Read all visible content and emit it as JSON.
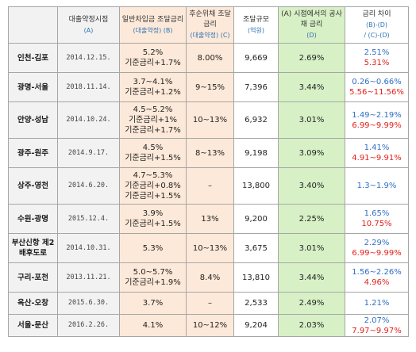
{
  "headers": {
    "route": "",
    "date": "대출약정시점",
    "date_sub": "(A)",
    "rate": "일반차입금 조달금리",
    "rate_sub": "(대출약정) (B)",
    "sub": "후순위채 조달금리",
    "sub_sub": "(대출약정) (C)",
    "scale": "조달규모",
    "scale_sub": "(억원)",
    "pub": "(A) 시점에서의 공사채 금리",
    "pub_sub": "(D)",
    "gap": "금리 차이",
    "gap_sub1": "(B)-(D)",
    "gap_sub2": "/ (C)-(D)"
  },
  "rows": [
    {
      "route": "인천-김포",
      "date": "2014.12.15.",
      "rate": [
        "5.2%",
        "기준금리+1.7%"
      ],
      "sub": "8.00%",
      "scale": "9,669",
      "pub": "2.69%",
      "gap_blue": "2.51%",
      "gap_red": "5.31%"
    },
    {
      "route": "광명-서울",
      "date": "2018.11.14.",
      "rate": [
        "3.7~4.1%",
        "기준금리+1.2%"
      ],
      "sub": "9~15%",
      "scale": "7,396",
      "pub": "3.44%",
      "gap_blue": "0.26~0.66%",
      "gap_red": "5.56~11.56%"
    },
    {
      "route": "안양-성남",
      "date": "2014.10.24.",
      "rate": [
        "4.5~5.2%",
        "기준금리+1%",
        "기준금리+1.7%"
      ],
      "sub": "10~13%",
      "scale": "6,932",
      "pub": "3.01%",
      "gap_blue": "1.49~2.19%",
      "gap_red": "6.99~9.99%"
    },
    {
      "route": "광주-원주",
      "date": "2014.9.17.",
      "rate": [
        "4.5%",
        "기준금리+1.5%"
      ],
      "sub": "8~13%",
      "scale": "9,198",
      "pub": "3.09%",
      "gap_blue": "1.41%",
      "gap_red": "4.91~9.91%"
    },
    {
      "route": "상주-영천",
      "date": "2014.6.20.",
      "rate": [
        "4.7~5.3%",
        "기준금리+0.8%",
        "기준금리+1.5%"
      ],
      "sub": "–",
      "scale": "13,800",
      "pub": "3.40%",
      "gap_blue": "1.3~1.9%",
      "gap_red": ""
    },
    {
      "route": "수원-광명",
      "date": "2015.12.4.",
      "rate": [
        "3.9%",
        "기준금리+1.5%"
      ],
      "sub": "13%",
      "scale": "9,200",
      "pub": "2.25%",
      "gap_blue": "1.65%",
      "gap_red": "10.75%"
    },
    {
      "route": "부산신항 제2배후도로",
      "date": "2014.10.31.",
      "rate": [
        "5.3%"
      ],
      "sub": "10~13%",
      "scale": "3,675",
      "pub": "3.01%",
      "gap_blue": "2.29%",
      "gap_red": "6.99~9.99%"
    },
    {
      "route": "구리-포천",
      "date": "2013.11.21.",
      "rate": [
        "5.0~5.7%",
        "기준금리+1.9%"
      ],
      "sub": "8.4%",
      "scale": "13,810",
      "pub": "3.44%",
      "gap_blue": "1.56~2.26%",
      "gap_red": "4.96%"
    },
    {
      "route": "옥산-오창",
      "date": "2015.6.30.",
      "rate": [
        "3.7%"
      ],
      "sub": "–",
      "scale": "2,533",
      "pub": "2.49%",
      "gap_blue": "1.21%",
      "gap_red": ""
    },
    {
      "route": "서울-문산",
      "date": "2016.2.26.",
      "rate": [
        "4.1%"
      ],
      "sub": "10~12%",
      "scale": "9,204",
      "pub": "2.03%",
      "gap_blue": "2.07%",
      "gap_red": "7.97~9.97%"
    }
  ]
}
